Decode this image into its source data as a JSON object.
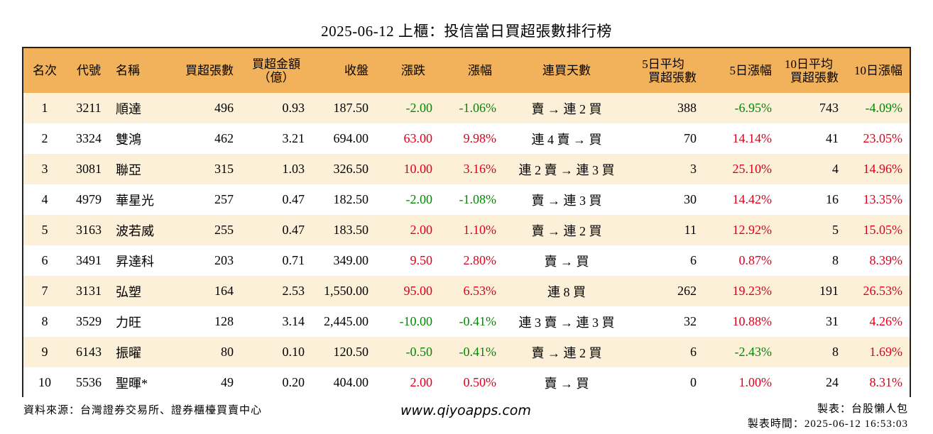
{
  "title": "2025-06-12 上櫃：投信當日買超張數排行榜",
  "headers": {
    "rank": "名次",
    "code": "代號",
    "name": "名稱",
    "net_lots": "買超張數",
    "amount_line1": "買超金額",
    "amount_line2": "（億）",
    "close": "收盤",
    "change": "漲跌",
    "pct": "漲幅",
    "streak": "連買天數",
    "avg5_line1": "5日平均",
    "avg5_line2": "買超張數",
    "pct5": "5日漲幅",
    "avg10_line1": "10日平均",
    "avg10_line2": "買超張數",
    "pct10": "10日漲幅"
  },
  "rows": [
    {
      "rank": "1",
      "code": "3211",
      "name": "順達",
      "lots": "496",
      "amount": "0.93",
      "close": "187.50",
      "change": "-2.00",
      "pct": "-1.06%",
      "streak": "賣 → 連 2 買",
      "avg5": "388",
      "pct5": "-6.95%",
      "avg10": "743",
      "pct10": "-4.09%"
    },
    {
      "rank": "2",
      "code": "3324",
      "name": "雙鴻",
      "lots": "462",
      "amount": "3.21",
      "close": "694.00",
      "change": "63.00",
      "pct": "9.98%",
      "streak": "連 4 賣 → 買",
      "avg5": "70",
      "pct5": "14.14%",
      "avg10": "41",
      "pct10": "23.05%"
    },
    {
      "rank": "3",
      "code": "3081",
      "name": "聯亞",
      "lots": "315",
      "amount": "1.03",
      "close": "326.50",
      "change": "10.00",
      "pct": "3.16%",
      "streak": "連 2 賣 → 連 3 買",
      "avg5": "3",
      "pct5": "25.10%",
      "avg10": "4",
      "pct10": "14.96%"
    },
    {
      "rank": "4",
      "code": "4979",
      "name": "華星光",
      "lots": "257",
      "amount": "0.47",
      "close": "182.50",
      "change": "-2.00",
      "pct": "-1.08%",
      "streak": "賣 → 連 3 買",
      "avg5": "30",
      "pct5": "14.42%",
      "avg10": "16",
      "pct10": "13.35%"
    },
    {
      "rank": "5",
      "code": "3163",
      "name": "波若威",
      "lots": "255",
      "amount": "0.47",
      "close": "183.50",
      "change": "2.00",
      "pct": "1.10%",
      "streak": "賣 → 連 2 買",
      "avg5": "11",
      "pct5": "12.92%",
      "avg10": "5",
      "pct10": "15.05%"
    },
    {
      "rank": "6",
      "code": "3491",
      "name": "昇達科",
      "lots": "203",
      "amount": "0.71",
      "close": "349.00",
      "change": "9.50",
      "pct": "2.80%",
      "streak": "賣 → 買",
      "avg5": "6",
      "pct5": "0.87%",
      "avg10": "8",
      "pct10": "8.39%"
    },
    {
      "rank": "7",
      "code": "3131",
      "name": "弘塑",
      "lots": "164",
      "amount": "2.53",
      "close": "1,550.00",
      "change": "95.00",
      "pct": "6.53%",
      "streak": "連 8 買",
      "avg5": "262",
      "pct5": "19.23%",
      "avg10": "191",
      "pct10": "26.53%"
    },
    {
      "rank": "8",
      "code": "3529",
      "name": "力旺",
      "lots": "128",
      "amount": "3.14",
      "close": "2,445.00",
      "change": "-10.00",
      "pct": "-0.41%",
      "streak": "連 3 賣 → 連 3 買",
      "avg5": "32",
      "pct5": "10.88%",
      "avg10": "31",
      "pct10": "4.26%"
    },
    {
      "rank": "9",
      "code": "6143",
      "name": "振曜",
      "lots": "80",
      "amount": "0.10",
      "close": "120.50",
      "change": "-0.50",
      "pct": "-0.41%",
      "streak": "賣 → 連 2 買",
      "avg5": "6",
      "pct5": "-2.43%",
      "avg10": "8",
      "pct10": "1.69%"
    },
    {
      "rank": "10",
      "code": "5536",
      "name": "聖暉*",
      "lots": "49",
      "amount": "0.20",
      "close": "404.00",
      "change": "2.00",
      "pct": "0.50%",
      "streak": "賣 → 買",
      "avg5": "0",
      "pct5": "1.00%",
      "avg10": "24",
      "pct10": "8.31%"
    }
  ],
  "colors": {
    "up": "#e0001b",
    "down": "#008a00",
    "header_bg": "#f2b25c",
    "stripe_bg": "#fdf0d9"
  },
  "footer": {
    "source": "資料來源：台灣證券交易所、證券櫃檯買賣中心",
    "website": "www.qiyoapps.com",
    "author": "製表：台股懶人包",
    "timestamp": "製表時間：2025-06-12 16:53:03"
  }
}
